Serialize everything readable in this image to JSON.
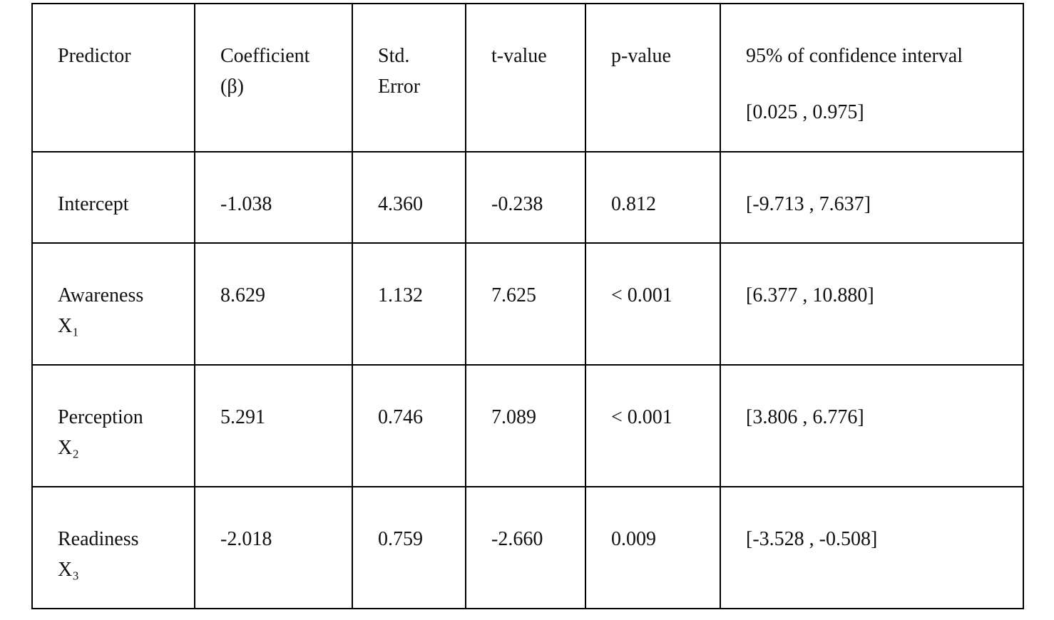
{
  "table": {
    "columns": [
      "Predictor",
      "Coefficient (β)",
      "Std. Error",
      "t-value",
      "p-value",
      "95% of confidence interval"
    ],
    "ci_range": "[0.025 , 0.975]",
    "rows": [
      {
        "name": "Intercept",
        "cells": [
          "-1.038",
          "4.360",
          "-0.238",
          "0.812",
          "[-9.713 , 7.637]"
        ]
      },
      {
        "name": "Awareness",
        "variable": "X₁",
        "cells": [
          "8.629",
          "1.132",
          "7.625",
          "< 0.001",
          "[6.377 , 10.880]"
        ]
      },
      {
        "name": "Perception",
        "variable": "X₂",
        "cells": [
          "5.291",
          "0.746",
          "7.089",
          "< 0.001",
          "[3.806 , 6.776]"
        ]
      },
      {
        "name": "Readiness",
        "variable": "X₃",
        "cells": [
          "-2.018",
          "0.759",
          "-2.660",
          "0.009",
          "[-3.528 , -0.508]"
        ]
      }
    ]
  }
}
